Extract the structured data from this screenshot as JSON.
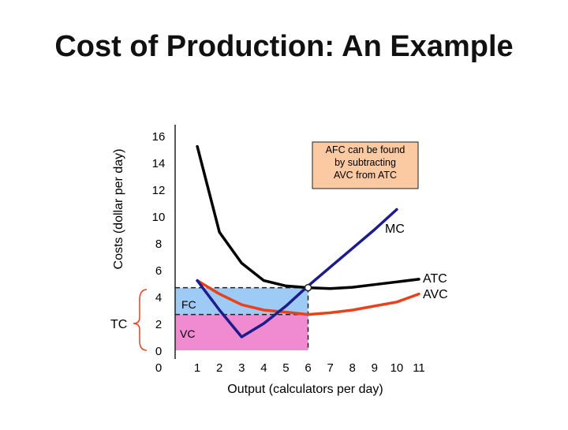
{
  "slide": {
    "title": "Cost of Production: An Example"
  },
  "chart_data": {
    "type": "line",
    "title": "",
    "xlabel": "Output (calculators per day)",
    "ylabel": "Costs (dollar per day)",
    "xlim": [
      0,
      11
    ],
    "ylim": [
      0,
      16
    ],
    "x_ticks": [
      "0",
      "1",
      "2",
      "3",
      "4",
      "5",
      "6",
      "7",
      "8",
      "9",
      "10",
      "11"
    ],
    "y_ticks": [
      "0",
      "2",
      "4",
      "6",
      "8",
      "10",
      "12",
      "14",
      "16"
    ],
    "series": [
      {
        "name": "ATC",
        "color": "#000000",
        "x": [
          1,
          2,
          3,
          4,
          5,
          6,
          7,
          8,
          9,
          10,
          11
        ],
        "y": [
          15.2,
          8.8,
          6.5,
          5.2,
          4.8,
          4.67,
          4.6,
          4.7,
          4.9,
          5.1,
          5.3
        ]
      },
      {
        "name": "AVC",
        "color": "#e8411c",
        "x": [
          1,
          2,
          3,
          4,
          5,
          6,
          7,
          8,
          9,
          10,
          11
        ],
        "y": [
          5.2,
          4.2,
          3.4,
          3.0,
          2.85,
          2.67,
          2.8,
          3.0,
          3.3,
          3.6,
          4.2
        ]
      },
      {
        "name": "MC",
        "color": "#1c1c8c",
        "x": [
          1,
          2,
          3,
          4,
          5,
          6,
          7,
          8,
          9,
          10
        ],
        "y": [
          5.2,
          3.0,
          1.0,
          2.0,
          3.3,
          4.8,
          6.2,
          7.6,
          9.0,
          10.5
        ]
      }
    ],
    "regions": [
      {
        "label": "FC",
        "color": "#9ecbf5",
        "x_range": [
          0,
          6
        ],
        "y_range": [
          2.67,
          4.67
        ]
      },
      {
        "label": "VC",
        "color": "#f08bd2",
        "x_range": [
          0,
          6
        ],
        "y_range": [
          0,
          2.67
        ]
      }
    ],
    "marked_point": {
      "x": 6,
      "y": 4.67
    },
    "dashed_guides": [
      {
        "x": 6,
        "y": 4.67
      },
      {
        "x": 6,
        "y": 2.67
      }
    ],
    "annotations": {
      "callout": "AFC can be found by subtracting AVC from ATC",
      "mc_label": "MC",
      "atc_label": "ATC",
      "avc_label": "AVC",
      "tc_label": "TC"
    }
  }
}
